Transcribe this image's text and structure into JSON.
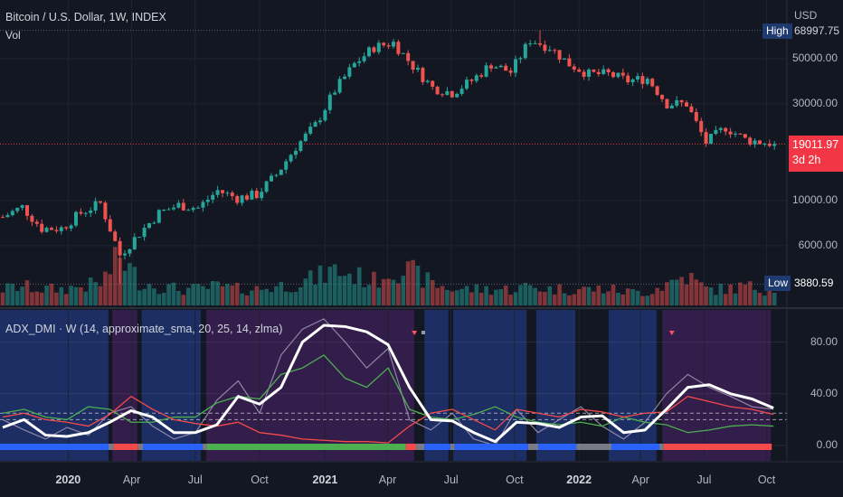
{
  "header": {
    "symbol_title": "Bitcoin / U.S. Dollar, 1W, INDEX",
    "volume_label": "Vol"
  },
  "indicator": {
    "title": "ADX_DMI · W (14, approximate_sma, 20, 25, 14, zlma)",
    "levels": [
      20,
      25
    ]
  },
  "price_axis": {
    "currency": "USD",
    "ticks": [
      {
        "label": "50000.00",
        "v": 50000
      },
      {
        "label": "30000.00",
        "v": 30000
      },
      {
        "label": "10000.00",
        "v": 10000
      },
      {
        "label": "6000.00",
        "v": 6000
      }
    ],
    "high": {
      "label": "High",
      "value": "68997.75"
    },
    "low": {
      "label": "Low",
      "value": "3880.59"
    },
    "last": {
      "value": "19011.97",
      "countdown": "3d 2h"
    }
  },
  "indicator_axis": {
    "ticks": [
      {
        "label": "80.00",
        "v": 80
      },
      {
        "label": "40.00",
        "v": 40
      },
      {
        "label": "0.00",
        "v": 0
      }
    ]
  },
  "time_axis": [
    {
      "label": "2020",
      "w": 13.4,
      "bold": true
    },
    {
      "label": "Apr",
      "w": 26.4
    },
    {
      "label": "Jul",
      "w": 39.4
    },
    {
      "label": "Oct",
      "w": 52.6
    },
    {
      "label": "2021",
      "w": 66,
      "bold": true
    },
    {
      "label": "Apr",
      "w": 78.8
    },
    {
      "label": "Jul",
      "w": 91.8
    },
    {
      "label": "Oct",
      "w": 104.8
    },
    {
      "label": "2022",
      "w": 118,
      "bold": true
    },
    {
      "label": "Apr",
      "w": 130.6
    },
    {
      "label": "Jul",
      "w": 143.6
    },
    {
      "label": "Oct",
      "w": 156.4
    }
  ],
  "colors": {
    "up": "#26a69a",
    "down": "#ef5350",
    "blue_bg": "#1e3270",
    "purple_bg": "#3a1e52",
    "adx": "#ffffff",
    "adx_raw": "#9b8fb0",
    "di_plus": "#4caf50",
    "di_minus": "#f44a4a",
    "bar_blue": "#2962ff",
    "bar_red": "#f44a4a",
    "bar_green": "#4caf50",
    "bar_grey": "#787b86"
  },
  "chart_data": {
    "type": "candlestick",
    "weeks": 159,
    "anchor_step_weeks": 4,
    "close_anchors": [
      8300,
      9300,
      7300,
      7300,
      8700,
      9700,
      5400,
      6900,
      8700,
      9500,
      9200,
      11200,
      10300,
      10700,
      13400,
      18400,
      23500,
      35000,
      47000,
      57000,
      60000,
      46000,
      36000,
      34000,
      39000,
      47000,
      43000,
      62000,
      57000,
      47000,
      42000,
      42000,
      39000,
      40000,
      30000,
      30000,
      19300,
      23000,
      20000,
      19300,
      19011.97
    ],
    "volume_anchors": [
      0.3,
      0.35,
      0.3,
      0.3,
      0.35,
      0.4,
      0.9,
      0.45,
      0.35,
      0.3,
      0.3,
      0.35,
      0.3,
      0.3,
      0.35,
      0.4,
      0.5,
      0.65,
      0.55,
      0.45,
      0.7,
      0.6,
      0.4,
      0.3,
      0.3,
      0.3,
      0.3,
      0.35,
      0.3,
      0.3,
      0.3,
      0.3,
      0.25,
      0.25,
      0.4,
      0.55,
      0.3,
      0.3,
      0.35,
      0.3,
      0.3
    ],
    "price_high": 68997.75,
    "price_low": 3880.59,
    "adx": [
      14,
      20,
      8,
      7,
      10,
      18,
      27,
      22,
      10,
      10,
      16,
      38,
      32,
      45,
      80,
      93,
      92,
      88,
      78,
      45,
      20,
      19,
      10,
      3,
      18,
      17,
      14,
      22,
      23,
      10,
      12,
      28,
      45,
      47,
      40,
      36,
      29
    ],
    "adx_raw": [
      20,
      12,
      5,
      14,
      8,
      25,
      30,
      15,
      5,
      10,
      35,
      50,
      25,
      70,
      90,
      98,
      80,
      60,
      75,
      20,
      12,
      25,
      5,
      0,
      28,
      10,
      20,
      30,
      15,
      5,
      18,
      40,
      55,
      45,
      38,
      30,
      28
    ],
    "di_plus": [
      25,
      28,
      22,
      20,
      30,
      28,
      18,
      18,
      22,
      22,
      33,
      38,
      36,
      55,
      60,
      70,
      52,
      45,
      60,
      28,
      22,
      20,
      24,
      30,
      22,
      18,
      16,
      18,
      15,
      22,
      18,
      16,
      10,
      12,
      15,
      16,
      15
    ],
    "di_minus": [
      22,
      25,
      20,
      18,
      15,
      24,
      38,
      28,
      20,
      17,
      15,
      18,
      10,
      8,
      5,
      4,
      3,
      3,
      2,
      15,
      25,
      28,
      20,
      12,
      28,
      25,
      22,
      28,
      26,
      22,
      25,
      26,
      38,
      34,
      30,
      28,
      24
    ],
    "background_regions": [
      {
        "c": "blue",
        "a": 0,
        "b": 22.2
      },
      {
        "c": "purple",
        "a": 23,
        "b": 28.1
      },
      {
        "c": "blue",
        "a": 29,
        "b": 41.1
      },
      {
        "c": "purple",
        "a": 42.2,
        "b": 84.8
      },
      {
        "c": "blue",
        "a": 86.9,
        "b": 91.8
      },
      {
        "c": "blue",
        "a": 92.8,
        "b": 107.8
      },
      {
        "c": "blue",
        "a": 109.8,
        "b": 117.8
      },
      {
        "c": "blue",
        "a": 124.6,
        "b": 134.4
      },
      {
        "c": "purple",
        "a": 135.6,
        "b": 157.8
      }
    ],
    "trend_bar": [
      {
        "c": "blue",
        "a": 0,
        "b": 22.2
      },
      {
        "c": "grey",
        "a": 22.2,
        "b": 23.3
      },
      {
        "c": "red",
        "a": 23.3,
        "b": 28.3
      },
      {
        "c": "grey",
        "a": 28.3,
        "b": 29.3
      },
      {
        "c": "blue",
        "a": 29.3,
        "b": 41.5
      },
      {
        "c": "grey",
        "a": 41.5,
        "b": 42.4
      },
      {
        "c": "green",
        "a": 42.4,
        "b": 83.1
      },
      {
        "c": "red",
        "a": 83.1,
        "b": 85.2
      },
      {
        "c": "grey",
        "a": 85.2,
        "b": 86.9
      },
      {
        "c": "blue",
        "a": 86.9,
        "b": 92.2
      },
      {
        "c": "grey",
        "a": 92.2,
        "b": 93.1
      },
      {
        "c": "blue",
        "a": 93.1,
        "b": 108.1
      },
      {
        "c": "grey",
        "a": 108.1,
        "b": 110.2
      },
      {
        "c": "blue",
        "a": 110.2,
        "b": 118
      },
      {
        "c": "grey",
        "a": 118,
        "b": 125.2
      },
      {
        "c": "blue",
        "a": 125.2,
        "b": 135
      },
      {
        "c": "grey",
        "a": 135,
        "b": 135.9
      },
      {
        "c": "red",
        "a": 135.9,
        "b": 158
      }
    ],
    "signals": [
      {
        "type": "down-triangle",
        "w": 84.3
      },
      {
        "type": "square",
        "w": 86.1
      },
      {
        "type": "down-triangle",
        "w": 137
      }
    ]
  }
}
